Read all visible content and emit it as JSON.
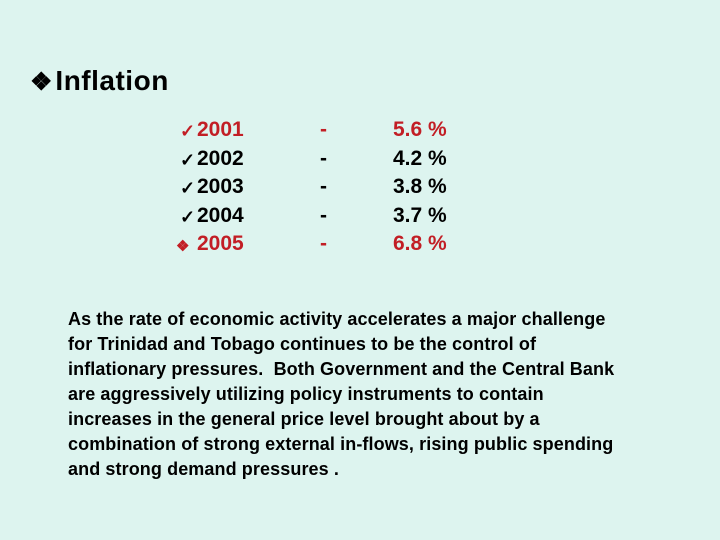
{
  "colors": {
    "background": "#DDF4EF",
    "accent_red": "#C21E25",
    "text_black": "#000000"
  },
  "title": {
    "bullet_icon": "❖",
    "text": "Inflation"
  },
  "inflation_list": {
    "rows": [
      {
        "bullet_icon": "✓",
        "year": "2001",
        "separator": "-",
        "value": "5.6 %",
        "emphasis": "red"
      },
      {
        "bullet_icon": "✓",
        "year": "2002",
        "separator": "-",
        "value": "4.2 %",
        "emphasis": "black"
      },
      {
        "bullet_icon": "✓",
        "year": "2003",
        "separator": "-",
        "value": "3.8 %",
        "emphasis": "black"
      },
      {
        "bullet_icon": "✓",
        "year": "2004",
        "separator": "-",
        "value": "3.7 %",
        "emphasis": "black"
      },
      {
        "bullet_icon": "❖",
        "year": "2005",
        "separator": "-",
        "value": "6.8 %",
        "emphasis": "red"
      }
    ]
  },
  "body_paragraph": {
    "text": "As the rate of economic activity accelerates a major challenge\nfor Trinidad and Tobago continues to be the control of\ninflationary pressures.  Both Government and the Central Bank\nare aggressively utilizing policy instruments to contain\nincreases in the general price level brought about by a\ncombination of strong external in-flows, rising public spending\nand strong demand pressures ."
  }
}
